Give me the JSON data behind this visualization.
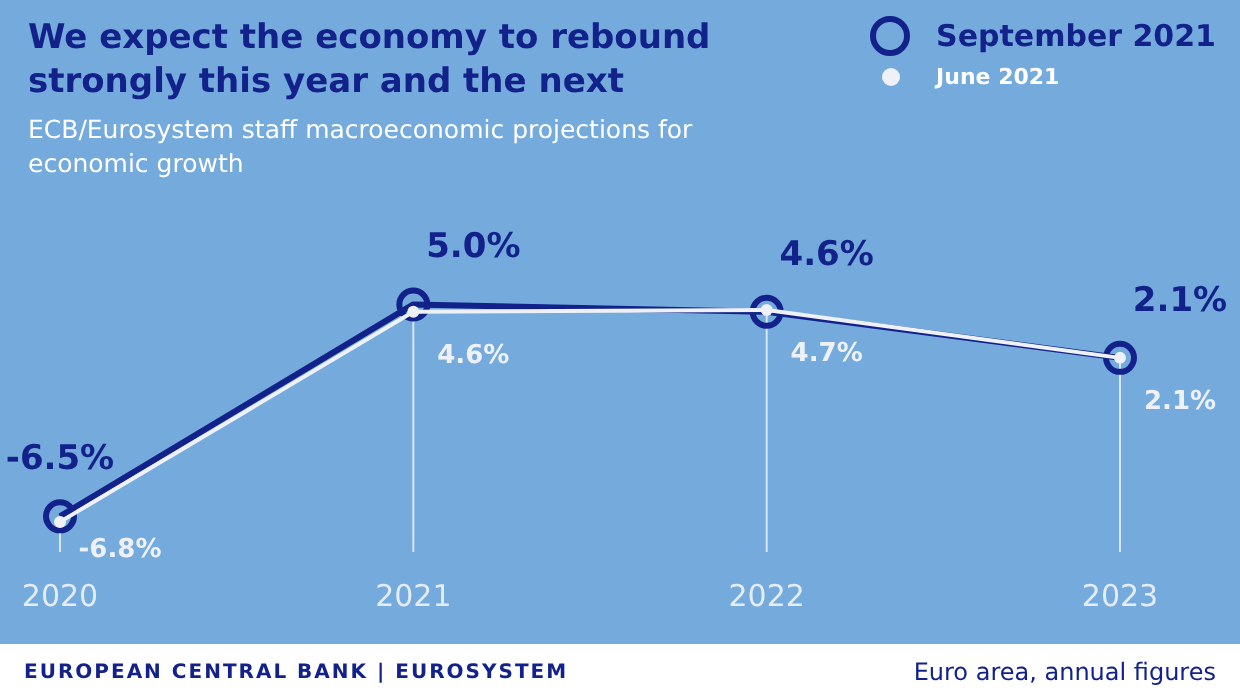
{
  "chart_data": {
    "type": "line",
    "title": "We expect the economy to rebound strongly this year and the next",
    "subtitle": "ECB/Eurosystem staff macroeconomic projections for economic growth",
    "categories": [
      "2020",
      "2021",
      "2022",
      "2023"
    ],
    "series": [
      {
        "name": "September 2021",
        "color": "#12228a",
        "values": [
          -6.5,
          5.0,
          4.6,
          2.1
        ],
        "value_labels": [
          "-6.5%",
          "5.0%",
          "4.6%",
          "2.1%"
        ]
      },
      {
        "name": "June 2021",
        "color": "#eef2f8",
        "values": [
          -6.8,
          4.6,
          4.7,
          2.1
        ],
        "value_labels": [
          "-6.8%",
          "4.6%",
          "4.7%",
          "2.1%"
        ]
      }
    ],
    "annotations": [
      "EUROPEAN CENTRAL BANK | EUROSYSTEM",
      "Euro area, annual figures"
    ],
    "legend": "top right",
    "marker": "circle",
    "line_style": "solid",
    "grid": "x"
  }
}
